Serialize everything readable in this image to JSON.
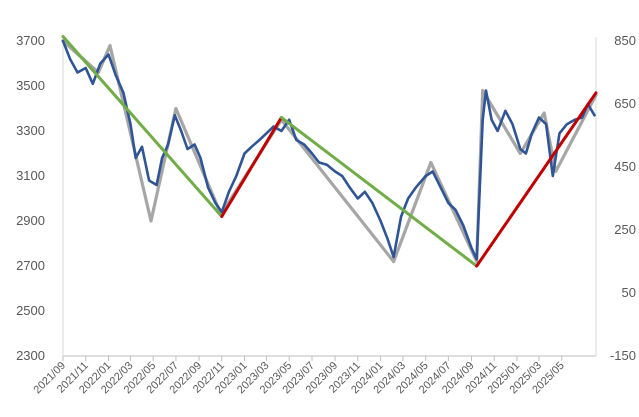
{
  "chart_data": {
    "type": "line",
    "title": "",
    "xlabel": "",
    "ylabel": "",
    "y2label": "",
    "ylim": [
      2300,
      3700
    ],
    "y2lim": [
      -150,
      850
    ],
    "yticks": [
      2300,
      2500,
      2700,
      2900,
      3100,
      3300,
      3500,
      3700
    ],
    "y2ticks": [
      -150,
      50,
      250,
      450,
      650,
      850
    ],
    "x_start": "2021-09",
    "x_end": "2025-08",
    "xtick_labels": [
      "2021/09",
      "2021/11",
      "2022/01",
      "2022/03",
      "2022/05",
      "2022/07",
      "2022/09",
      "2022/11",
      "2023/01",
      "2023/03",
      "2023/05",
      "2023/07",
      "2023/09",
      "2023/11",
      "2024/01",
      "2024/03",
      "2024/05",
      "2024/07",
      "2024/09",
      "2024/11",
      "2025/01",
      "2025/03",
      "2025/05"
    ],
    "grid": false,
    "legend": "none",
    "series": [
      {
        "color": "#2f5597",
        "axis": "left",
        "points": [
          [
            "2021-09-01",
            3700
          ],
          [
            "2021-09-20",
            3620
          ],
          [
            "2021-10-10",
            3560
          ],
          [
            "2021-11-01",
            3580
          ],
          [
            "2021-11-20",
            3510
          ],
          [
            "2021-12-10",
            3600
          ],
          [
            "2022-01-01",
            3640
          ],
          [
            "2022-01-20",
            3550
          ],
          [
            "2022-02-10",
            3470
          ],
          [
            "2022-03-01",
            3330
          ],
          [
            "2022-03-15",
            3180
          ],
          [
            "2022-04-01",
            3230
          ],
          [
            "2022-04-20",
            3080
          ],
          [
            "2022-05-10",
            3060
          ],
          [
            "2022-05-25",
            3180
          ],
          [
            "2022-06-10",
            3240
          ],
          [
            "2022-06-28",
            3370
          ],
          [
            "2022-07-15",
            3300
          ],
          [
            "2022-08-01",
            3220
          ],
          [
            "2022-08-20",
            3240
          ],
          [
            "2022-09-05",
            3180
          ],
          [
            "2022-09-25",
            3050
          ],
          [
            "2022-10-15",
            2980
          ],
          [
            "2022-11-01",
            2940
          ],
          [
            "2022-11-20",
            3030
          ],
          [
            "2022-12-10",
            3100
          ],
          [
            "2023-01-01",
            3200
          ],
          [
            "2023-01-20",
            3230
          ],
          [
            "2023-02-10",
            3260
          ],
          [
            "2023-03-01",
            3290
          ],
          [
            "2023-03-20",
            3320
          ],
          [
            "2023-04-10",
            3300
          ],
          [
            "2023-05-01",
            3350
          ],
          [
            "2023-05-20",
            3260
          ],
          [
            "2023-06-10",
            3240
          ],
          [
            "2023-07-01",
            3200
          ],
          [
            "2023-07-20",
            3160
          ],
          [
            "2023-08-10",
            3150
          ],
          [
            "2023-09-01",
            3120
          ],
          [
            "2023-09-20",
            3100
          ],
          [
            "2023-10-10",
            3050
          ],
          [
            "2023-11-01",
            3000
          ],
          [
            "2023-11-20",
            3030
          ],
          [
            "2023-12-10",
            2980
          ],
          [
            "2024-01-01",
            2900
          ],
          [
            "2024-01-20",
            2820
          ],
          [
            "2024-02-05",
            2740
          ],
          [
            "2024-02-25",
            2920
          ],
          [
            "2024-03-15",
            3000
          ],
          [
            "2024-04-05",
            3050
          ],
          [
            "2024-05-01",
            3100
          ],
          [
            "2024-05-20",
            3120
          ],
          [
            "2024-06-10",
            3050
          ],
          [
            "2024-07-01",
            2980
          ],
          [
            "2024-07-20",
            2950
          ],
          [
            "2024-08-10",
            2880
          ],
          [
            "2024-09-01",
            2780
          ],
          [
            "2024-09-15",
            2730
          ],
          [
            "2024-10-01",
            3350
          ],
          [
            "2024-10-10",
            3480
          ],
          [
            "2024-10-25",
            3350
          ],
          [
            "2024-11-10",
            3300
          ],
          [
            "2024-12-01",
            3390
          ],
          [
            "2024-12-20",
            3330
          ],
          [
            "2025-01-10",
            3220
          ],
          [
            "2025-01-25",
            3200
          ],
          [
            "2025-02-10",
            3290
          ],
          [
            "2025-03-01",
            3360
          ],
          [
            "2025-03-20",
            3330
          ],
          [
            "2025-04-07",
            3100
          ],
          [
            "2025-04-25",
            3290
          ],
          [
            "2025-05-15",
            3330
          ],
          [
            "2025-06-05",
            3350
          ],
          [
            "2025-06-25",
            3360
          ],
          [
            "2025-07-10",
            3420
          ],
          [
            "2025-07-28",
            3370
          ]
        ]
      },
      {
        "color": "#a6a6a6",
        "axis": "left",
        "points": [
          [
            "2021-09-01",
            3700
          ],
          [
            "2021-12-05",
            3560
          ],
          [
            "2022-01-05",
            3680
          ],
          [
            "2022-04-25",
            2900
          ],
          [
            "2022-07-01",
            3400
          ],
          [
            "2022-10-30",
            2930
          ],
          [
            "2023-04-10",
            3350
          ],
          [
            "2024-02-05",
            2720
          ],
          [
            "2024-05-15",
            3160
          ],
          [
            "2024-09-15",
            2720
          ],
          [
            "2024-10-01",
            3480
          ],
          [
            "2025-01-10",
            3200
          ],
          [
            "2025-03-15",
            3380
          ],
          [
            "2025-04-15",
            3120
          ],
          [
            "2025-08-01",
            3460
          ]
        ]
      },
      {
        "color": "#70ad47",
        "axis": "left",
        "points": [
          [
            "2021-09-01",
            3720
          ],
          [
            "2022-11-01",
            2920
          ]
        ]
      },
      {
        "color": "#c00000",
        "axis": "left",
        "points": [
          [
            "2022-11-01",
            2920
          ],
          [
            "2023-04-10",
            3360
          ]
        ]
      },
      {
        "color": "#70ad47",
        "axis": "left",
        "points": [
          [
            "2023-04-10",
            3360
          ],
          [
            "2024-09-15",
            2700
          ]
        ]
      },
      {
        "color": "#c00000",
        "axis": "left",
        "points": [
          [
            "2024-09-15",
            2700
          ],
          [
            "2025-08-01",
            3470
          ]
        ]
      }
    ]
  }
}
